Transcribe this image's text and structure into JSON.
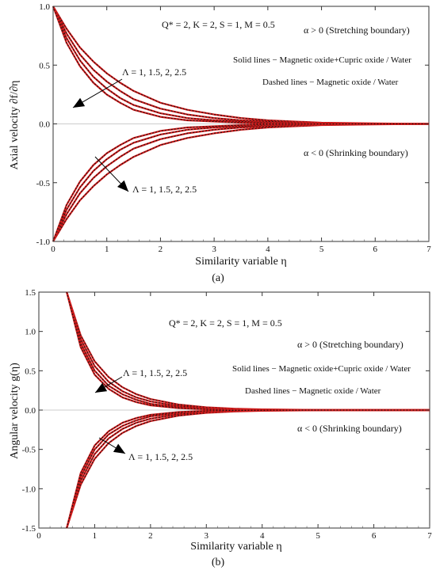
{
  "chart_data": [
    {
      "type": "line",
      "panel_label": "(a)",
      "xlabel": "Similarity variable η",
      "ylabel": "Axial velocity ∂f/∂η",
      "xlim": [
        0,
        7
      ],
      "ylim": [
        -1.0,
        1.0
      ],
      "xticks": [
        "0",
        "1",
        "2",
        "3",
        "4",
        "5",
        "6",
        "7"
      ],
      "yticks": [
        "-1.0",
        "-0.5",
        "0.0",
        "0.5",
        "1.0"
      ],
      "params_text": "Q* = 2, K = 2, S = 1, M = 0.5",
      "annotations": [
        "α > 0 (Stretching boundary)",
        "α < 0 (Shrinking boundary)",
        "Solid lines − Magnetic oxide+Cupric oxide / Water",
        "Dashed lines − Magnetic oxide / Water"
      ],
      "lambda_label_top": "Λ = 1, 1.5, 2, 2.5",
      "lambda_label_bottom": "Λ = 1, 1.5, 2, 2.5",
      "x": [
        0,
        0.25,
        0.5,
        0.75,
        1.0,
        1.25,
        1.5,
        2.0,
        2.5,
        3.0,
        3.5,
        4.0,
        5.0,
        6.0,
        7.0
      ],
      "series": [
        {
          "values": [
            1.0,
            0.81,
            0.65,
            0.53,
            0.43,
            0.35,
            0.28,
            0.18,
            0.12,
            0.08,
            0.05,
            0.03,
            0.01,
            0.004,
            0.0
          ]
        },
        {
          "values": [
            1.0,
            0.77,
            0.59,
            0.46,
            0.36,
            0.28,
            0.21,
            0.13,
            0.08,
            0.05,
            0.03,
            0.02,
            0.006,
            0.002,
            0.0
          ]
        },
        {
          "values": [
            1.0,
            0.73,
            0.54,
            0.4,
            0.3,
            0.22,
            0.16,
            0.09,
            0.05,
            0.03,
            0.02,
            0.01,
            0.003,
            0.001,
            0.0
          ]
        },
        {
          "values": [
            1.0,
            0.69,
            0.49,
            0.35,
            0.25,
            0.18,
            0.12,
            0.06,
            0.03,
            0.02,
            0.01,
            0.005,
            0.001,
            0.0,
            0.0
          ]
        },
        {
          "values": [
            -1.0,
            -0.81,
            -0.65,
            -0.53,
            -0.43,
            -0.35,
            -0.28,
            -0.18,
            -0.12,
            -0.08,
            -0.05,
            -0.03,
            -0.01,
            -0.004,
            0.0
          ]
        },
        {
          "values": [
            -1.0,
            -0.77,
            -0.59,
            -0.46,
            -0.36,
            -0.28,
            -0.21,
            -0.13,
            -0.08,
            -0.05,
            -0.03,
            -0.02,
            -0.006,
            -0.002,
            0.0
          ]
        },
        {
          "values": [
            -1.0,
            -0.73,
            -0.54,
            -0.4,
            -0.3,
            -0.22,
            -0.16,
            -0.09,
            -0.05,
            -0.03,
            -0.02,
            -0.01,
            -0.003,
            -0.001,
            0.0
          ]
        },
        {
          "values": [
            -1.0,
            -0.69,
            -0.49,
            -0.35,
            -0.25,
            -0.18,
            -0.12,
            -0.06,
            -0.03,
            -0.02,
            -0.01,
            -0.005,
            -0.001,
            0.0,
            0.0
          ]
        }
      ]
    },
    {
      "type": "line",
      "panel_label": "(b)",
      "xlabel": "Similarity variable η",
      "ylabel": "Angular velocity g(η)",
      "xlim": [
        0,
        7
      ],
      "ylim": [
        -1.5,
        1.5
      ],
      "xticks": [
        "0",
        "1",
        "2",
        "3",
        "4",
        "5",
        "6",
        "7"
      ],
      "yticks": [
        "-1.5",
        "-1.0",
        "-0.5",
        "0.0",
        "0.5",
        "1.0",
        "1.5"
      ],
      "params_text": "Q* = 2, K = 2, S = 1, M = 0.5",
      "annotations": [
        "α > 0 (Stretching boundary)",
        "α < 0 (Shrinking boundary)",
        "Solid lines − Magnetic oxide+Cupric oxide / Water",
        "Dashed lines − Magnetic oxide / Water"
      ],
      "lambda_label_top": "Λ = 1, 1.5, 2, 2.5",
      "lambda_label_bottom": "Λ = 1, 1.5, 2, 2.5",
      "x": [
        0.5,
        0.75,
        1.0,
        1.25,
        1.5,
        1.75,
        2.0,
        2.5,
        3.0,
        3.5,
        4.0,
        5.0,
        6.0,
        7.0
      ],
      "series": [
        {
          "values": [
            1.5,
            0.95,
            0.62,
            0.42,
            0.29,
            0.2,
            0.14,
            0.07,
            0.035,
            0.018,
            0.009,
            0.002,
            0.0,
            0.0
          ]
        },
        {
          "values": [
            1.5,
            0.9,
            0.56,
            0.36,
            0.24,
            0.16,
            0.11,
            0.05,
            0.024,
            0.012,
            0.006,
            0.001,
            0.0,
            0.0
          ]
        },
        {
          "values": [
            1.5,
            0.85,
            0.5,
            0.31,
            0.2,
            0.13,
            0.08,
            0.035,
            0.016,
            0.007,
            0.003,
            0.0,
            0.0,
            0.0
          ]
        },
        {
          "values": [
            1.5,
            0.8,
            0.45,
            0.27,
            0.16,
            0.1,
            0.06,
            0.025,
            0.01,
            0.004,
            0.002,
            0.0,
            0.0,
            0.0
          ]
        },
        {
          "values": [
            -1.5,
            -0.95,
            -0.62,
            -0.42,
            -0.29,
            -0.2,
            -0.14,
            -0.07,
            -0.035,
            -0.018,
            -0.009,
            -0.002,
            0.0,
            0.0
          ]
        },
        {
          "values": [
            -1.5,
            -0.9,
            -0.56,
            -0.36,
            -0.24,
            -0.16,
            -0.11,
            -0.05,
            -0.024,
            -0.012,
            -0.006,
            -0.001,
            0.0,
            0.0
          ]
        },
        {
          "values": [
            -1.5,
            -0.85,
            -0.5,
            -0.31,
            -0.2,
            -0.13,
            -0.08,
            -0.035,
            -0.016,
            -0.007,
            -0.003,
            0.0,
            0.0,
            0.0
          ]
        },
        {
          "values": [
            -1.5,
            -0.8,
            -0.45,
            -0.27,
            -0.16,
            -0.1,
            -0.06,
            -0.025,
            -0.01,
            -0.004,
            -0.002,
            0.0,
            0.0,
            0.0
          ]
        }
      ]
    }
  ]
}
